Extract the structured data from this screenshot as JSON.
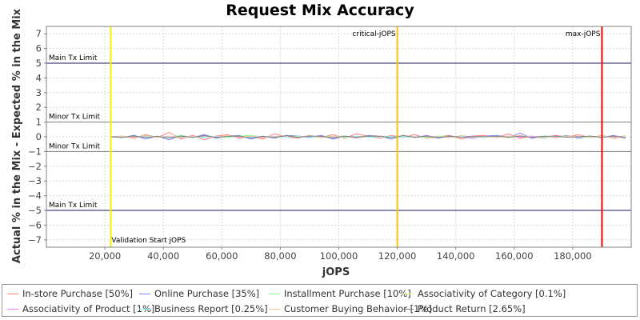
{
  "chart_data": {
    "type": "line",
    "title": "Request Mix Accuracy",
    "xlabel": "jOPS",
    "ylabel": "Actual % in the Mix - Expected % in the Mix",
    "xlim": [
      0,
      200000
    ],
    "ylim": [
      -7.5,
      7.5
    ],
    "x_ticks": [
      20000,
      40000,
      60000,
      80000,
      100000,
      120000,
      140000,
      160000,
      180000
    ],
    "x_tick_labels": [
      "20,000",
      "40,000",
      "60,000",
      "80,000",
      "100,000",
      "120,000",
      "140,000",
      "160,000",
      "180,000"
    ],
    "y_ticks": [
      7,
      6,
      5,
      4,
      3,
      2,
      1,
      0,
      -1,
      -2,
      -3,
      -4,
      -5,
      -6,
      -7
    ],
    "y_tick_labels": [
      "7",
      "6",
      "5",
      "4",
      "3",
      "2",
      "1",
      "0",
      "−1",
      "−2",
      "−3",
      "−4",
      "−5",
      "−6",
      "−7"
    ],
    "grid": true,
    "legend_position": "bottom",
    "horizontal_lines": [
      {
        "value": 5,
        "label": "Main Tx Limit",
        "color": "#1a1a5e"
      },
      {
        "value": 1,
        "label": "Minor Tx Limit",
        "color": "#808080"
      },
      {
        "value": -1,
        "label": "Minor Tx Limit",
        "color": "#808080"
      },
      {
        "value": -5,
        "label": "Main Tx Limit",
        "color": "#1a1a5e"
      }
    ],
    "vertical_lines": [
      {
        "value": 22000,
        "label": "Validation Start jOPS",
        "color": "#f0f000"
      },
      {
        "value": 120000,
        "label": "critical-jOPS",
        "color": "#ffc000"
      },
      {
        "value": 190000,
        "label": "max-jOPS",
        "color": "#ff0000"
      }
    ],
    "series": [
      {
        "name": "In-store Purchase [50%]",
        "color": "#ff8080",
        "x": [
          22000,
          26000,
          30000,
          34000,
          38000,
          42000,
          46000,
          50000,
          54000,
          58000,
          62000,
          66000,
          70000,
          74000,
          78000,
          82000,
          86000,
          90000,
          94000,
          98000,
          102000,
          106000,
          110000,
          114000,
          118000,
          122000,
          126000,
          130000,
          134000,
          138000,
          142000,
          146000,
          150000,
          154000,
          158000,
          162000,
          166000,
          170000,
          174000,
          178000,
          182000,
          186000,
          190000,
          194000,
          198000
        ],
        "values": [
          0.0,
          0.05,
          -0.1,
          0.15,
          -0.05,
          0.3,
          -0.15,
          0.1,
          -0.2,
          0.05,
          0.15,
          -0.1,
          0.05,
          -0.15,
          0.2,
          0.0,
          -0.1,
          0.1,
          -0.05,
          0.15,
          -0.1,
          0.2,
          0.05,
          -0.1,
          0.1,
          -0.05,
          0.15,
          -0.1,
          0.0,
          0.1,
          -0.15,
          0.05,
          0.1,
          -0.05,
          0.2,
          -0.1,
          0.05,
          -0.1,
          0.1,
          0.0,
          0.15,
          -0.05,
          0.1,
          -0.1,
          0.05
        ]
      },
      {
        "name": "Online Purchase [35%]",
        "color": "#8080ff",
        "x": [
          22000,
          26000,
          30000,
          34000,
          38000,
          42000,
          46000,
          50000,
          54000,
          58000,
          62000,
          66000,
          70000,
          74000,
          78000,
          82000,
          86000,
          90000,
          94000,
          98000,
          102000,
          106000,
          110000,
          114000,
          118000,
          122000,
          126000,
          130000,
          134000,
          138000,
          142000,
          146000,
          150000,
          154000,
          158000,
          162000,
          166000,
          170000,
          174000,
          178000,
          182000,
          186000,
          190000,
          194000,
          198000
        ],
        "values": [
          0.0,
          -0.05,
          0.1,
          -0.15,
          0.05,
          -0.2,
          0.1,
          -0.05,
          0.15,
          -0.1,
          0.05,
          0.1,
          -0.15,
          0.05,
          -0.1,
          0.1,
          0.05,
          -0.05,
          0.1,
          -0.15,
          0.05,
          -0.1,
          0.1,
          0.05,
          -0.15,
          0.1,
          -0.05,
          0.1,
          -0.1,
          0.05,
          0.0,
          -0.1,
          0.05,
          0.1,
          -0.05,
          0.25,
          -0.1,
          0.05,
          -0.05,
          0.1,
          -0.1,
          0.05,
          -0.05,
          0.1,
          -0.1
        ]
      },
      {
        "name": "Installment Purchase [10%]",
        "color": "#80ff80",
        "x": [
          22000,
          26000,
          30000,
          34000,
          38000,
          42000,
          46000,
          50000,
          54000,
          58000,
          62000,
          66000,
          70000,
          74000,
          78000,
          82000,
          86000,
          90000,
          94000,
          98000,
          102000,
          106000,
          110000,
          114000,
          118000,
          122000,
          126000,
          130000,
          134000,
          138000,
          142000,
          146000,
          150000,
          154000,
          158000,
          162000,
          166000,
          170000,
          174000,
          178000,
          182000,
          186000,
          190000,
          194000,
          198000
        ],
        "values": [
          0.0,
          0.05,
          -0.05,
          0.1,
          0.0,
          -0.05,
          0.1,
          -0.05,
          0.05,
          0.0,
          -0.05,
          0.05,
          0.1,
          -0.05,
          0.0,
          0.05,
          -0.05,
          0.05,
          0.0,
          0.05,
          -0.05,
          0.0,
          0.05,
          0.0,
          -0.05,
          0.05,
          0.0,
          -0.05,
          0.05,
          0.0,
          0.05,
          -0.05,
          0.0,
          0.05,
          -0.05,
          0.0,
          0.05,
          -0.05,
          0.0,
          0.05,
          0.0,
          -0.05,
          0.05,
          0.0,
          0.05
        ]
      },
      {
        "name": "Associativity of Category [0.1%]",
        "color": "#ffff80",
        "x": [
          22000,
          26000,
          30000,
          34000,
          38000,
          42000,
          46000,
          50000,
          54000,
          58000,
          62000,
          66000,
          70000,
          74000,
          78000,
          82000,
          86000,
          90000,
          94000,
          98000,
          102000,
          106000,
          110000,
          114000,
          118000,
          122000,
          126000,
          130000,
          134000,
          138000,
          142000,
          146000,
          150000,
          154000,
          158000,
          162000,
          166000,
          170000,
          174000,
          178000,
          182000,
          186000,
          190000,
          194000,
          198000
        ],
        "values": [
          0.0,
          0.0,
          0.02,
          0.0,
          -0.02,
          0.0,
          0.02,
          0.0,
          0.0,
          -0.02,
          0.0,
          0.02,
          0.0,
          0.0,
          -0.02,
          0.0,
          0.02,
          0.0,
          0.0,
          -0.02,
          0.0,
          0.02,
          0.0,
          0.0,
          -0.02,
          0.0,
          0.02,
          0.0,
          0.0,
          -0.02,
          0.0,
          0.02,
          0.0,
          0.0,
          -0.02,
          0.0,
          0.02,
          0.0,
          0.0,
          -0.02,
          0.0,
          0.02,
          0.0,
          0.0,
          0.0
        ]
      },
      {
        "name": "Associativity of Product [1%]",
        "color": "#ff80ff",
        "x": [
          22000,
          26000,
          30000,
          34000,
          38000,
          42000,
          46000,
          50000,
          54000,
          58000,
          62000,
          66000,
          70000,
          74000,
          78000,
          82000,
          86000,
          90000,
          94000,
          98000,
          102000,
          106000,
          110000,
          114000,
          118000,
          122000,
          126000,
          130000,
          134000,
          138000,
          142000,
          146000,
          150000,
          154000,
          158000,
          162000,
          166000,
          170000,
          174000,
          178000,
          182000,
          186000,
          190000,
          194000,
          198000
        ],
        "values": [
          0.0,
          0.02,
          -0.03,
          0.05,
          -0.02,
          0.03,
          -0.05,
          0.02,
          0.03,
          -0.02,
          0.05,
          -0.03,
          0.02,
          0.0,
          -0.03,
          0.05,
          -0.02,
          0.03,
          0.0,
          -0.05,
          0.02,
          0.03,
          -0.02,
          0.05,
          0.0,
          -0.03,
          0.02,
          0.05,
          -0.02,
          0.0,
          0.03,
          -0.05,
          0.02,
          0.0,
          0.05,
          -0.02,
          0.03,
          0.0,
          -0.03,
          0.02,
          0.05,
          0.0,
          -0.02,
          0.03,
          0.0
        ]
      },
      {
        "name": "Business Report [0.25%]",
        "color": "#80ffff",
        "x": [
          22000,
          26000,
          30000,
          34000,
          38000,
          42000,
          46000,
          50000,
          54000,
          58000,
          62000,
          66000,
          70000,
          74000,
          78000,
          82000,
          86000,
          90000,
          94000,
          98000,
          102000,
          106000,
          110000,
          114000,
          118000,
          122000,
          126000,
          130000,
          134000,
          138000,
          142000,
          146000,
          150000,
          154000,
          158000,
          162000,
          166000,
          170000,
          174000,
          178000,
          182000,
          186000,
          190000,
          194000,
          198000
        ],
        "values": [
          0.0,
          -0.02,
          0.02,
          0.0,
          0.03,
          -0.02,
          0.0,
          0.02,
          -0.03,
          0.0,
          0.02,
          0.0,
          -0.02,
          0.03,
          0.0,
          -0.02,
          0.02,
          0.0,
          -0.03,
          0.02,
          0.0,
          0.02,
          -0.02,
          0.0,
          0.03,
          -0.02,
          0.0,
          0.02,
          0.0,
          -0.03,
          0.02,
          0.0,
          -0.02,
          0.02,
          0.0,
          0.03,
          -0.02,
          0.0,
          0.02,
          0.0,
          -0.02,
          0.02,
          0.0,
          -0.02,
          0.0
        ]
      },
      {
        "name": "Customer Buying Behavior [1%]",
        "color": "#ffc0a0",
        "x": [
          22000,
          26000,
          30000,
          34000,
          38000,
          42000,
          46000,
          50000,
          54000,
          58000,
          62000,
          66000,
          70000,
          74000,
          78000,
          82000,
          86000,
          90000,
          94000,
          98000,
          102000,
          106000,
          110000,
          114000,
          118000,
          122000,
          126000,
          130000,
          134000,
          138000,
          142000,
          146000,
          150000,
          154000,
          158000,
          162000,
          166000,
          170000,
          174000,
          178000,
          182000,
          186000,
          190000,
          194000,
          198000
        ],
        "values": [
          0.0,
          0.03,
          -0.05,
          0.08,
          -0.03,
          0.05,
          -0.08,
          0.03,
          0.05,
          -0.05,
          0.08,
          -0.03,
          0.05,
          -0.08,
          0.03,
          0.05,
          -0.03,
          0.08,
          -0.05,
          0.03,
          0.05,
          -0.08,
          0.03,
          0.05,
          -0.03,
          0.08,
          -0.05,
          0.03,
          0.0,
          -0.05,
          0.08,
          -0.03,
          0.05,
          -0.05,
          0.03,
          0.08,
          -0.03,
          0.05,
          -0.08,
          0.03,
          0.05,
          -0.03,
          0.08,
          -0.05,
          0.03
        ]
      },
      {
        "name": "Product Return [2.65%]",
        "color": "#808080",
        "x": [
          22000,
          26000,
          30000,
          34000,
          38000,
          42000,
          46000,
          50000,
          54000,
          58000,
          62000,
          66000,
          70000,
          74000,
          78000,
          82000,
          86000,
          90000,
          94000,
          98000,
          102000,
          106000,
          110000,
          114000,
          118000,
          122000,
          126000,
          130000,
          134000,
          138000,
          142000,
          146000,
          150000,
          154000,
          158000,
          162000,
          166000,
          170000,
          174000,
          178000,
          182000,
          186000,
          190000,
          194000,
          198000
        ],
        "values": [
          0.0,
          -0.03,
          0.05,
          -0.05,
          0.03,
          -0.08,
          0.05,
          -0.03,
          0.08,
          -0.05,
          0.03,
          0.05,
          -0.08,
          0.03,
          -0.05,
          0.08,
          -0.03,
          0.05,
          0.03,
          -0.08,
          0.05,
          -0.03,
          0.05,
          0.03,
          -0.05,
          0.08,
          -0.03,
          0.05,
          -0.05,
          0.03,
          -0.03,
          0.05,
          0.0,
          0.05,
          -0.03,
          0.05,
          -0.05,
          0.03,
          0.05,
          -0.03,
          0.0,
          0.05,
          -0.03,
          0.05,
          -0.05
        ]
      }
    ]
  }
}
